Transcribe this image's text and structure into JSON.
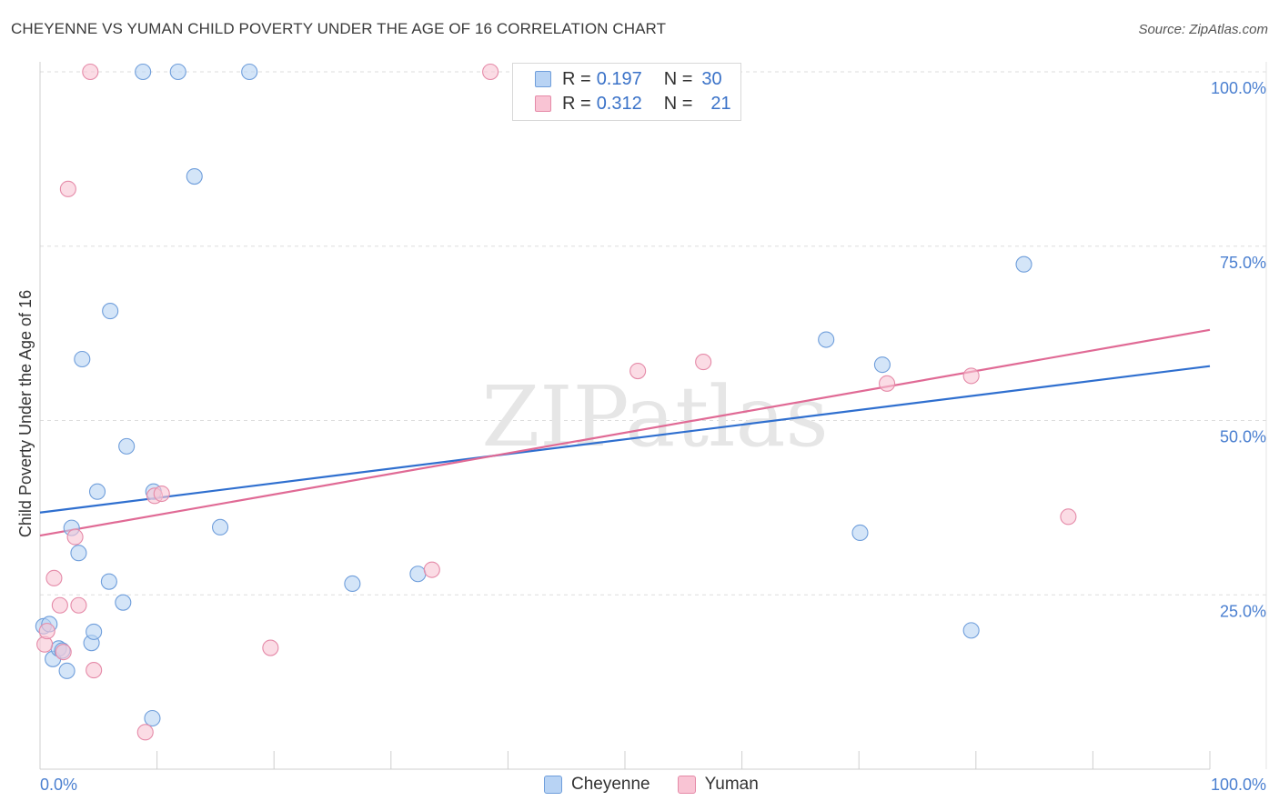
{
  "header": {
    "title": "CHEYENNE VS YUMAN CHILD POVERTY UNDER THE AGE OF 16 CORRELATION CHART",
    "source": "Source: ZipAtlas.com"
  },
  "legend": {
    "rows": [
      {
        "r_label": "R = ",
        "r_value": "0.197",
        "n_label": "N = ",
        "n_value": "30"
      },
      {
        "r_label": "R = ",
        "r_value": "0.312",
        "n_label": "N = ",
        "n_value": "21"
      }
    ]
  },
  "bottom_legend": {
    "items": [
      {
        "label": "Cheyenne"
      },
      {
        "label": "Yuman"
      }
    ]
  },
  "colors": {
    "cheyenne_fill": "#b8d3f4",
    "cheyenne_stroke": "#6f9edb",
    "cheyenne_line": "#2f6fcf",
    "yuman_fill": "#f9c4d4",
    "yuman_stroke": "#e58aa8",
    "yuman_line": "#e06a95",
    "grid": "#dddddd",
    "tick_text": "#4a7fd0"
  },
  "chart_data": {
    "type": "scatter",
    "title": "CHEYENNE VS YUMAN CHILD POVERTY UNDER THE AGE OF 16 CORRELATION CHART",
    "xlabel": "",
    "ylabel": "Child Poverty Under the Age of 16",
    "xlim": [
      0,
      100
    ],
    "ylim": [
      0,
      100
    ],
    "x_tick_labels": [
      "0.0%",
      "100.0%"
    ],
    "y_ticks": [
      25,
      50,
      75,
      100
    ],
    "y_tick_labels": [
      "25.0%",
      "50.0%",
      "75.0%",
      "100.0%"
    ],
    "watermark": "ZIPatlas",
    "series": [
      {
        "name": "Cheyenne",
        "r": 0.197,
        "n": 30,
        "trend": {
          "x": [
            0,
            100
          ],
          "y": [
            36.8,
            57.8
          ]
        },
        "points": [
          {
            "x": 0.3,
            "y": 20.5
          },
          {
            "x": 0.8,
            "y": 20.8
          },
          {
            "x": 1.1,
            "y": 15.8
          },
          {
            "x": 1.6,
            "y": 17.3
          },
          {
            "x": 1.9,
            "y": 17.0
          },
          {
            "x": 2.3,
            "y": 14.1
          },
          {
            "x": 2.7,
            "y": 34.6
          },
          {
            "x": 3.3,
            "y": 31.0
          },
          {
            "x": 3.6,
            "y": 58.8
          },
          {
            "x": 4.4,
            "y": 18.1
          },
          {
            "x": 4.6,
            "y": 19.7
          },
          {
            "x": 4.9,
            "y": 39.8
          },
          {
            "x": 5.9,
            "y": 26.9
          },
          {
            "x": 6.0,
            "y": 65.7
          },
          {
            "x": 7.1,
            "y": 23.9
          },
          {
            "x": 7.4,
            "y": 46.3
          },
          {
            "x": 9.6,
            "y": 7.3
          },
          {
            "x": 9.7,
            "y": 39.8
          },
          {
            "x": 8.8,
            "y": 100.0
          },
          {
            "x": 11.8,
            "y": 100.0
          },
          {
            "x": 13.2,
            "y": 85.0
          },
          {
            "x": 15.4,
            "y": 34.7
          },
          {
            "x": 17.9,
            "y": 100.0
          },
          {
            "x": 26.7,
            "y": 26.6
          },
          {
            "x": 32.3,
            "y": 28.0
          },
          {
            "x": 67.2,
            "y": 61.6
          },
          {
            "x": 70.1,
            "y": 33.9
          },
          {
            "x": 72.0,
            "y": 58.0
          },
          {
            "x": 79.6,
            "y": 19.9
          },
          {
            "x": 84.1,
            "y": 72.4
          }
        ]
      },
      {
        "name": "Yuman",
        "r": 0.312,
        "n": 21,
        "trend": {
          "x": [
            0,
            100
          ],
          "y": [
            33.5,
            63.0
          ]
        },
        "points": [
          {
            "x": 0.4,
            "y": 17.9
          },
          {
            "x": 0.6,
            "y": 19.8
          },
          {
            "x": 1.2,
            "y": 27.4
          },
          {
            "x": 1.7,
            "y": 23.5
          },
          {
            "x": 2.0,
            "y": 16.8
          },
          {
            "x": 2.4,
            "y": 83.2
          },
          {
            "x": 3.0,
            "y": 33.3
          },
          {
            "x": 3.3,
            "y": 23.5
          },
          {
            "x": 4.3,
            "y": 100.0
          },
          {
            "x": 4.6,
            "y": 14.2
          },
          {
            "x": 9.0,
            "y": 5.3
          },
          {
            "x": 9.8,
            "y": 39.2
          },
          {
            "x": 10.4,
            "y": 39.5
          },
          {
            "x": 19.7,
            "y": 17.4
          },
          {
            "x": 33.5,
            "y": 28.6
          },
          {
            "x": 38.5,
            "y": 100.0
          },
          {
            "x": 51.1,
            "y": 57.1
          },
          {
            "x": 56.7,
            "y": 58.4
          },
          {
            "x": 72.4,
            "y": 55.3
          },
          {
            "x": 79.6,
            "y": 56.4
          },
          {
            "x": 87.9,
            "y": 36.2
          }
        ]
      }
    ]
  }
}
